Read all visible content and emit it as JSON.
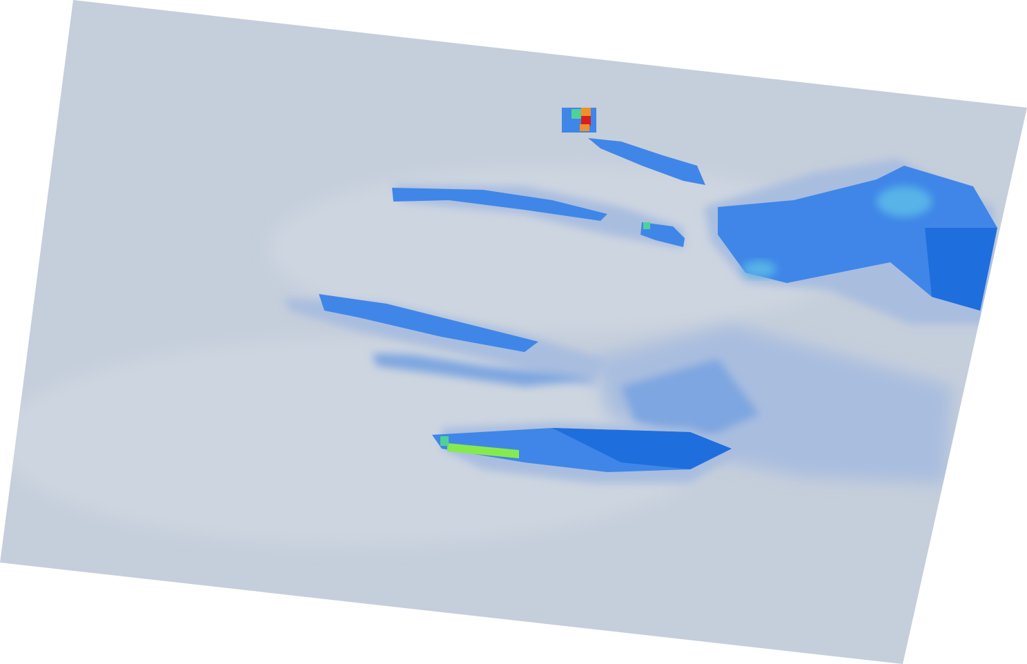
{
  "viewport": {
    "background": "#ffffff",
    "palette": {
      "base": "#c5cedb",
      "light": "#cdd5e0",
      "pale_blue": "#a9bddf",
      "mid_blue": "#7ea6e0",
      "blue": "#3f86e8",
      "deep_blue": "#1f6ede",
      "cyan": "#58b4e8",
      "teal": "#4fd19a",
      "green": "#86ea4f",
      "orange": "#f0902a",
      "red": "#d42020"
    }
  }
}
